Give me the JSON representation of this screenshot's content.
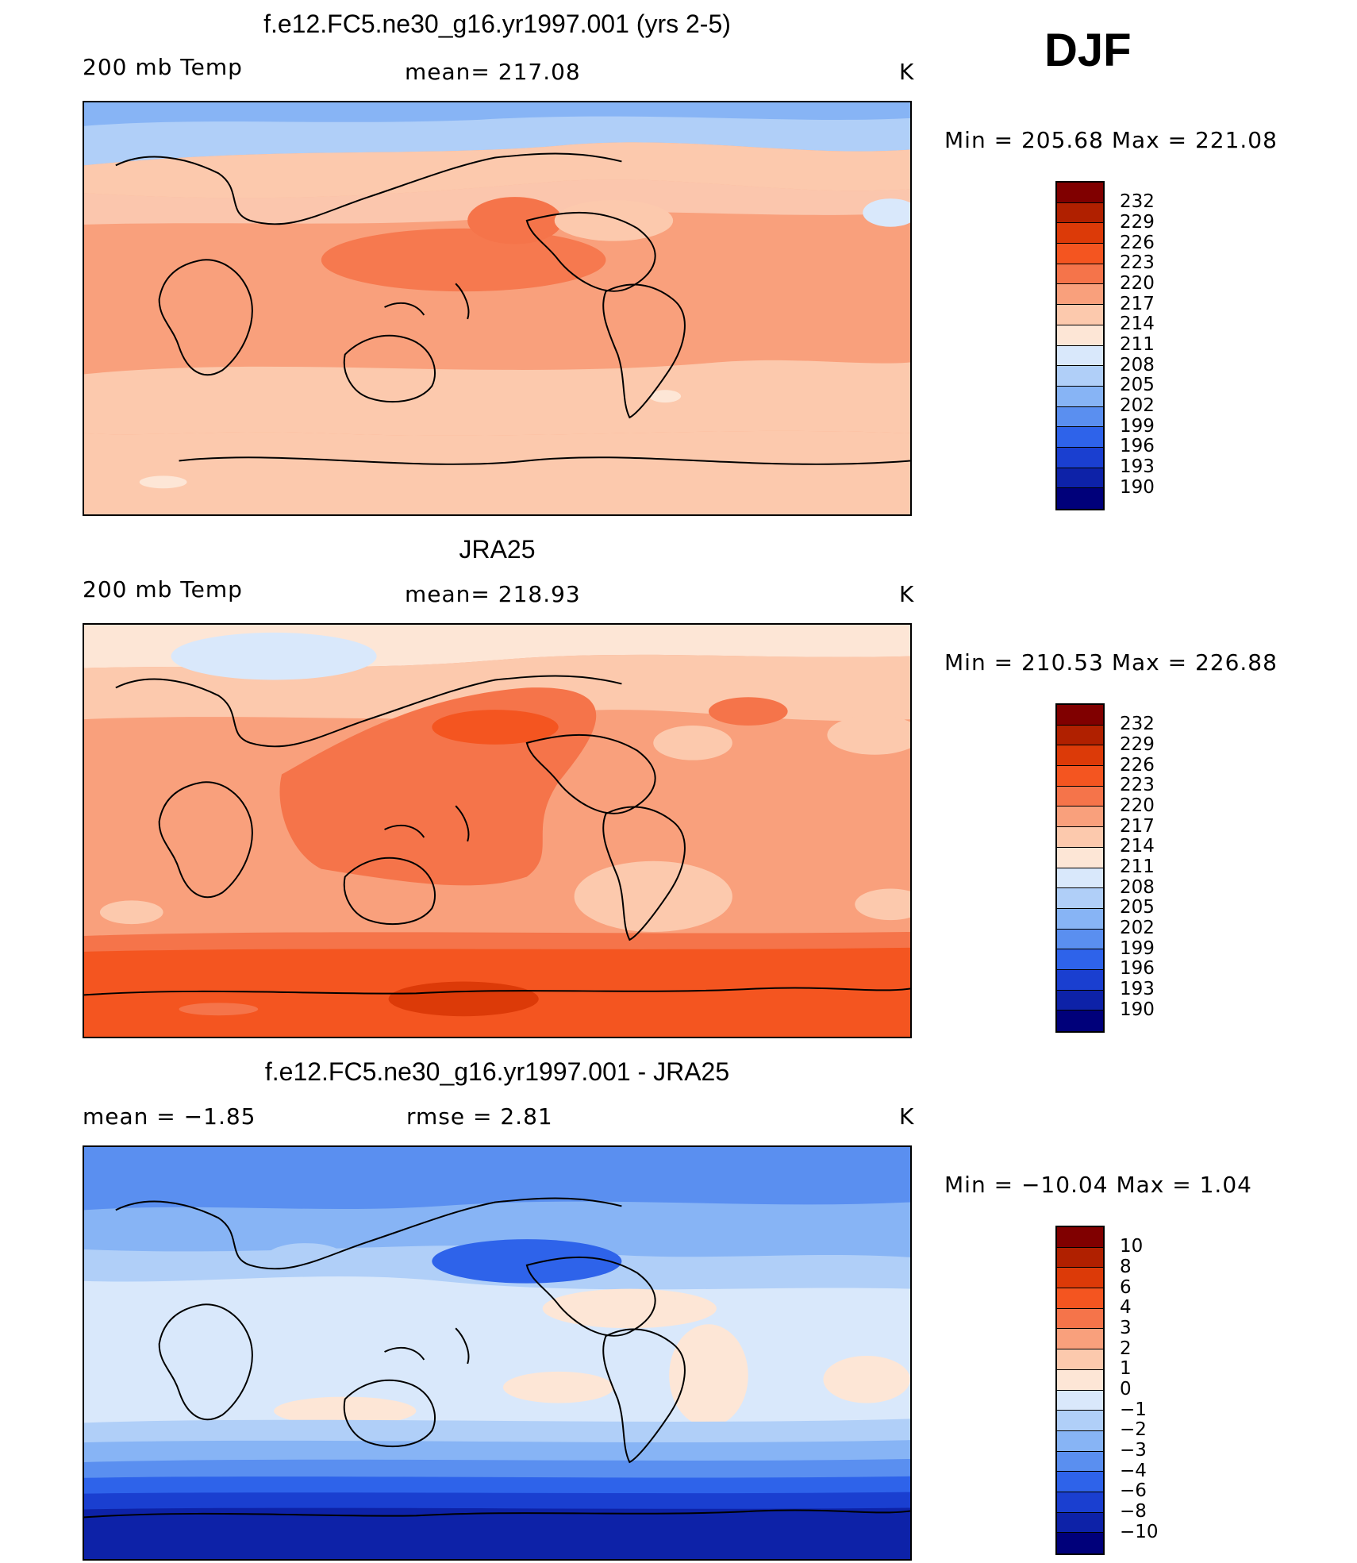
{
  "season": "DJF",
  "panels": [
    {
      "title": "f.e12.FC5.ne30_g16.yr1997.001 (yrs 2-5)",
      "left_label": "200 mb Temp",
      "center_label": "mean= 217.08",
      "units": "K",
      "minmax": "Min  =  205.68  Max  =  221.08",
      "colorbar_ticks": [
        "232",
        "229",
        "226",
        "223",
        "220",
        "217",
        "214",
        "211",
        "208",
        "205",
        "202",
        "199",
        "196",
        "193",
        "190"
      ]
    },
    {
      "title": "JRA25",
      "left_label": "200 mb Temp",
      "center_label": "mean= 218.93",
      "units": "K",
      "minmax": "Min  =  210.53  Max  =  226.88",
      "colorbar_ticks": [
        "232",
        "229",
        "226",
        "223",
        "220",
        "217",
        "214",
        "211",
        "208",
        "205",
        "202",
        "199",
        "196",
        "193",
        "190"
      ]
    },
    {
      "title": "f.e12.FC5.ne30_g16.yr1997.001 - JRA25",
      "left_label": "mean  =    −1.85",
      "center_label": "rmse  =     2.81",
      "units": "K",
      "minmax": "Min  =  −10.04  Max  =     1.04",
      "colorbar_ticks": [
        "10",
        "8",
        "6",
        "4",
        "3",
        "2",
        "1",
        "0",
        "−1",
        "−2",
        "−3",
        "−4",
        "−6",
        "−8",
        "−10"
      ]
    }
  ],
  "colors": {
    "abs_scale": [
      "#800000",
      "#b02000",
      "#dc3a08",
      "#f45520",
      "#f5744a",
      "#f9a07c",
      "#fcc9ad",
      "#fde6d6",
      "#d9e8fb",
      "#b0cff8",
      "#87b4f5",
      "#5a8ff0",
      "#2e63ea",
      "#1a3fd0",
      "#0d22a8",
      "#00007a"
    ],
    "diff_scale": [
      "#800000",
      "#b02000",
      "#dc3a08",
      "#f45520",
      "#f5744a",
      "#f9a07c",
      "#fcc9ad",
      "#fde6d6",
      "#d9e8fb",
      "#b0cff8",
      "#87b4f5",
      "#5a8ff0",
      "#2e63ea",
      "#1a3fd0",
      "#0d22a8",
      "#00007a"
    ]
  }
}
